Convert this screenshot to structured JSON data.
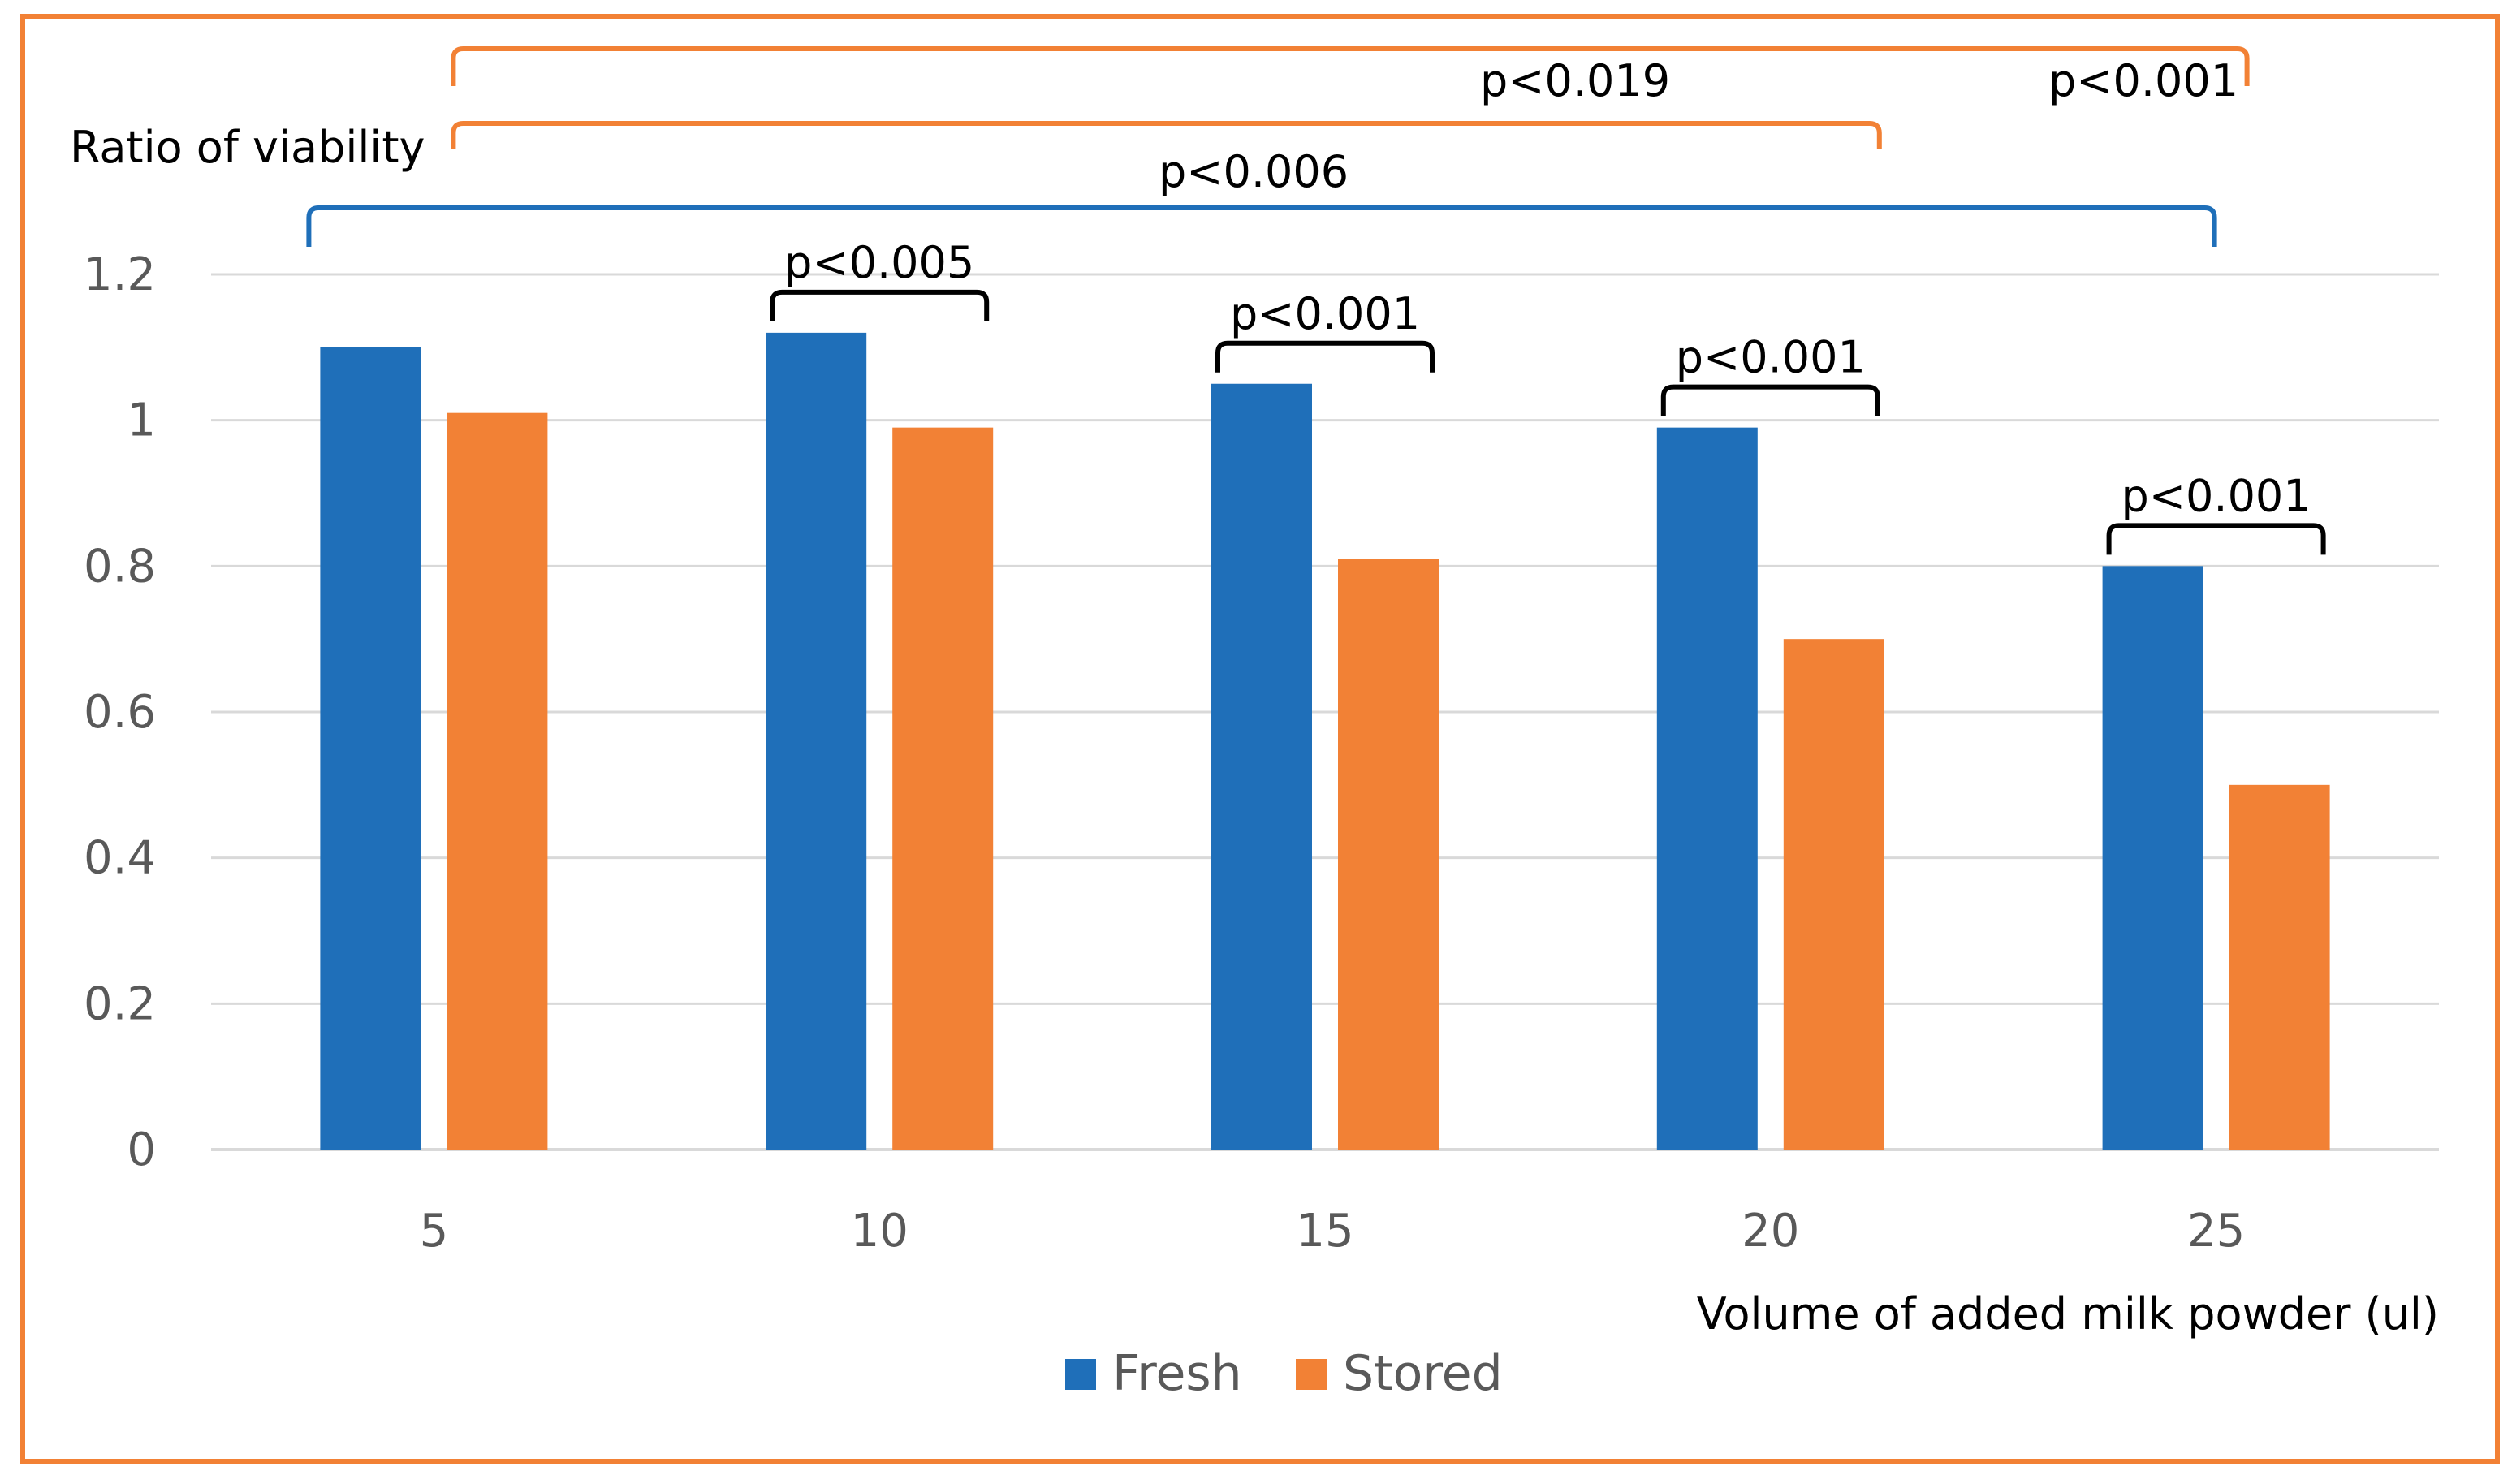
{
  "chart_data": {
    "type": "bar",
    "ylabel": "Ratio of viability",
    "xlabel": "Volume of added milk powder (ul)",
    "categories": [
      "5",
      "10",
      "15",
      "20",
      "25"
    ],
    "series": [
      {
        "name": "Fresh",
        "values": [
          1.1,
          1.12,
          1.05,
          0.99,
          0.8
        ]
      },
      {
        "name": "Stored",
        "values": [
          1.01,
          0.99,
          0.81,
          0.7,
          0.5
        ]
      }
    ],
    "ylim": [
      0,
      1.2
    ],
    "yticks": [
      "0",
      "0.2",
      "0.4",
      "0.6",
      "0.8",
      "1",
      "1.2"
    ],
    "grid": true,
    "legend_position": "bottom",
    "colors": {
      "Fresh": "#1f6fb9",
      "Stored": "#f28135",
      "frame": "#f28135",
      "grid": "#d9d9d9",
      "text": "#000000",
      "ticks": "#595959"
    },
    "annotations": [
      {
        "label": "p<0.005",
        "between": "Fresh 10 vs Stored 10"
      },
      {
        "label": "p<0.001",
        "between": "Fresh 15 vs Stored 15"
      },
      {
        "label": "p<0.001",
        "between": "Fresh 20 vs Stored 20"
      },
      {
        "label": "p<0.001",
        "between": "Fresh 25 vs Stored 25"
      },
      {
        "label": "p<0.006",
        "between": "Fresh 5 vs Fresh 25"
      },
      {
        "label": "p<0.019",
        "between": "Stored 5 vs Stored 20"
      },
      {
        "label": "p<0.001",
        "between": "Stored 5 vs Stored 25"
      }
    ]
  }
}
